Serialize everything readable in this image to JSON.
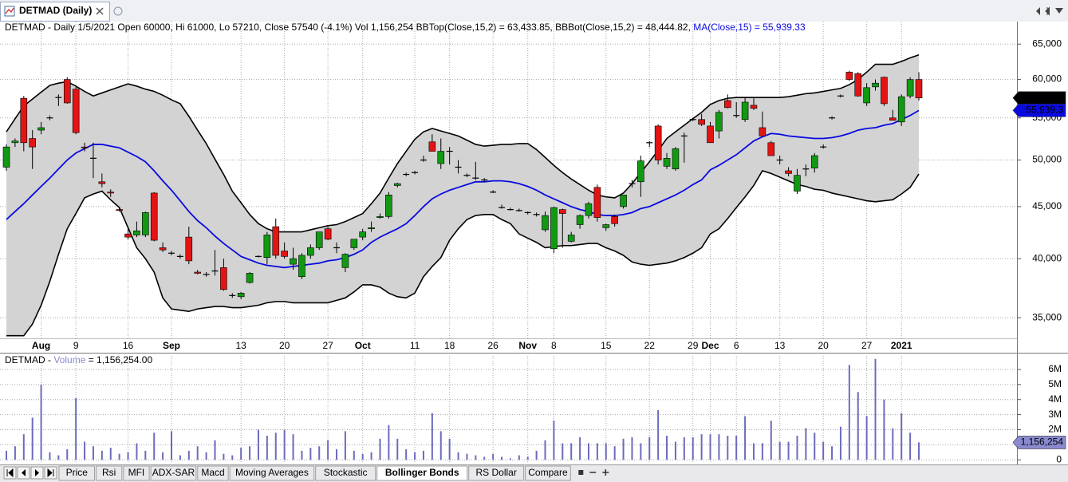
{
  "window": {
    "tab_title": "DETMAD (Daily)"
  },
  "tabs": [
    "Price",
    "Rsi",
    "MFI",
    "ADX-SAR",
    "Macd",
    "Moving Averages",
    "Stockastic",
    "Bollinger Bonds",
    "RS Dollar",
    "Compare"
  ],
  "active_tab": 7,
  "chart_data": [
    {
      "type": "candlestick",
      "info": "DETMAD - Daily 1/5/2021 Open 60000, Hi 61000, Lo 57210, Close 57540 (-4.1%) Vol 1,156,254 BBTop(Close,15,2) = 63,433.85, BBBot(Close,15,2) = 48,444.82, ",
      "info_ma": "MA(Close,15) = 55,939.33",
      "log": true,
      "grid": true,
      "up_color": "#119a11",
      "down_color": "#e31414",
      "band_fill": "#d3d3d3",
      "band_color": "#000000",
      "ma_color": "#0a0ae0",
      "ylim": [
        33400,
        68400
      ],
      "yticks": [
        {
          "value": 35000,
          "label": "35,000"
        },
        {
          "value": 40000,
          "label": "40,000"
        },
        {
          "value": 45000,
          "label": "45,000"
        },
        {
          "value": 50000,
          "label": "50,000"
        },
        {
          "value": 55000,
          "label": "55,000"
        },
        {
          "value": 60000,
          "label": "60,000"
        },
        {
          "value": 65000,
          "label": "65,000"
        }
      ],
      "last_labels": {
        "close": "57,540",
        "ma": "55,939.3"
      },
      "categories": [
        null,
        null,
        null,
        null,
        "Aug",
        null,
        null,
        null,
        "9",
        null,
        null,
        null,
        null,
        null,
        "16",
        null,
        null,
        null,
        null,
        "Sep",
        null,
        null,
        null,
        null,
        null,
        null,
        null,
        "13",
        null,
        null,
        null,
        null,
        "20",
        null,
        null,
        null,
        null,
        "27",
        null,
        null,
        null,
        "Oct",
        null,
        null,
        null,
        null,
        null,
        "11",
        null,
        null,
        null,
        "18",
        null,
        null,
        null,
        null,
        "26",
        null,
        null,
        null,
        "Nov",
        null,
        null,
        "8",
        null,
        null,
        null,
        null,
        null,
        "15",
        null,
        null,
        null,
        null,
        "22",
        null,
        null,
        null,
        null,
        "29",
        null,
        "Dec",
        null,
        null,
        "6",
        null,
        null,
        null,
        null,
        "13",
        null,
        null,
        null,
        null,
        "20",
        null,
        null,
        null,
        null,
        "27",
        null,
        null,
        null,
        "2021",
        null,
        null
      ],
      "open": [
        49200,
        52000,
        57500,
        52500,
        53500,
        55000,
        57600,
        60000,
        58700,
        51500,
        50200,
        47600,
        46500,
        44700,
        42300,
        42200,
        42200,
        46400,
        41000,
        40500,
        40200,
        42000,
        38800,
        38600,
        38900,
        39200,
        36800,
        36700,
        37900,
        40200,
        40100,
        43000,
        40700,
        39500,
        38400,
        40300,
        41000,
        42800,
        41000,
        39200,
        41000,
        42000,
        42800,
        43900,
        44000,
        47200,
        48400,
        48600,
        50000,
        52100,
        49600,
        51000,
        49200,
        48300,
        48000,
        47800,
        46500,
        44900,
        44700,
        44600,
        44400,
        44200,
        42700,
        40900,
        44700,
        41600,
        43200,
        44100,
        47000,
        42900,
        44000,
        45000,
        47400,
        47600,
        52000,
        54000,
        49300,
        49000,
        52800,
        54800,
        54800,
        54000,
        53400,
        57200,
        55300,
        54800,
        56600,
        53800,
        52000,
        50000,
        48800,
        46600,
        49000,
        49100,
        51500,
        55000,
        57800,
        61000,
        60800,
        56900,
        59000,
        60300,
        55000,
        54500,
        57800,
        60000
      ],
      "high": [
        51800,
        52500,
        57800,
        53500,
        54500,
        55300,
        58000,
        60300,
        59000,
        52000,
        52000,
        48500,
        46800,
        45000,
        43000,
        43500,
        44500,
        46500,
        41500,
        40700,
        40400,
        43000,
        39000,
        38800,
        40800,
        40000,
        37000,
        37100,
        38800,
        40300,
        42500,
        43800,
        41500,
        41000,
        40500,
        41300,
        42500,
        43000,
        41500,
        40500,
        41800,
        42800,
        43500,
        44300,
        46500,
        47500,
        48600,
        48800,
        50500,
        53000,
        52500,
        51500,
        50000,
        48500,
        49800,
        48000,
        46700,
        45200,
        44900,
        44800,
        44500,
        44400,
        44500,
        45000,
        44800,
        42500,
        44200,
        45500,
        47300,
        43300,
        44200,
        46200,
        47800,
        50500,
        52200,
        54200,
        50800,
        51500,
        53200,
        55000,
        55500,
        54500,
        56000,
        58000,
        57000,
        57600,
        57500,
        55800,
        52200,
        50500,
        49200,
        49000,
        49500,
        50800,
        51800,
        55200,
        58000,
        61200,
        61000,
        59500,
        60000,
        60400,
        56000,
        58000,
        60300,
        61000
      ],
      "low": [
        48800,
        51500,
        51000,
        49000,
        53000,
        54700,
        56500,
        56800,
        53000,
        51000,
        48000,
        47000,
        46000,
        44500,
        41800,
        42000,
        42000,
        41600,
        40600,
        40300,
        40000,
        39500,
        38600,
        38400,
        38500,
        37200,
        36600,
        36500,
        37800,
        40100,
        39500,
        40000,
        40000,
        39000,
        38200,
        40000,
        40800,
        41700,
        40500,
        38800,
        40800,
        41700,
        42500,
        43800,
        43800,
        47000,
        48200,
        48400,
        49800,
        51000,
        49000,
        49500,
        48500,
        48100,
        47800,
        47600,
        46400,
        44800,
        44600,
        44500,
        44200,
        44000,
        42500,
        40500,
        41000,
        41500,
        42800,
        43800,
        43500,
        42600,
        43000,
        44800,
        47000,
        46000,
        51500,
        49500,
        49000,
        48800,
        49700,
        54600,
        54000,
        52000,
        52500,
        56200,
        55000,
        54500,
        56000,
        52800,
        50500,
        49500,
        48200,
        46300,
        48200,
        48600,
        51300,
        54800,
        57600,
        59800,
        57700,
        56500,
        58500,
        56500,
        54700,
        54000,
        57500,
        57210
      ],
      "close": [
        51500,
        52200,
        52000,
        51500,
        53800,
        55000,
        57600,
        56900,
        53200,
        51400,
        50200,
        47400,
        46400,
        44600,
        42000,
        42600,
        44400,
        41700,
        40800,
        40500,
        40200,
        39800,
        38700,
        38600,
        38900,
        37300,
        36800,
        37000,
        38700,
        40200,
        42200,
        40300,
        40200,
        40000,
        40300,
        41000,
        42500,
        41800,
        41000,
        40400,
        41800,
        42500,
        42900,
        44000,
        46200,
        47400,
        48400,
        48600,
        50000,
        51000,
        51000,
        51000,
        49200,
        48300,
        48000,
        47800,
        46500,
        44900,
        44700,
        44600,
        44400,
        44200,
        44100,
        44900,
        44300,
        42200,
        44100,
        45300,
        43900,
        43200,
        43300,
        46200,
        47400,
        49900,
        52000,
        50000,
        50200,
        51300,
        52800,
        54800,
        54200,
        52000,
        55700,
        56300,
        55300,
        57000,
        56200,
        52800,
        50500,
        50000,
        48500,
        48300,
        49000,
        50500,
        51500,
        55000,
        57800,
        60000,
        57800,
        58900,
        59500,
        56800,
        54700,
        57700,
        60000,
        57540
      ],
      "bands": {
        "upper": [
          53300,
          54900,
          56500,
          57400,
          58300,
          59200,
          59500,
          59700,
          59100,
          58400,
          57800,
          58200,
          58600,
          59000,
          59400,
          59100,
          58700,
          58400,
          57900,
          57300,
          56800,
          55200,
          53500,
          51900,
          50100,
          48400,
          46600,
          45400,
          44200,
          43300,
          42800,
          42500,
          42500,
          42500,
          42500,
          42700,
          42900,
          43100,
          43200,
          43500,
          43900,
          44300,
          45300,
          46400,
          48000,
          49600,
          51000,
          52400,
          53300,
          53700,
          53400,
          53100,
          52800,
          52300,
          51800,
          51600,
          51700,
          51800,
          51800,
          51900,
          51900,
          51200,
          50300,
          49400,
          48600,
          47900,
          47300,
          46700,
          46200,
          46000,
          45900,
          46400,
          47400,
          48600,
          49800,
          51100,
          52500,
          53300,
          54100,
          54900,
          55700,
          56700,
          57200,
          57500,
          57600,
          57600,
          57600,
          57600,
          57600,
          57600,
          57700,
          57900,
          58100,
          58200,
          58400,
          58600,
          58800,
          59300,
          60000,
          61000,
          62100,
          62100,
          62100,
          62500,
          63000,
          63433.85
        ],
        "lower": [
          33600,
          33600,
          33600,
          34500,
          36000,
          38000,
          40400,
          42800,
          44300,
          45900,
          46300,
          46600,
          45700,
          44900,
          42900,
          41000,
          40000,
          38800,
          36600,
          35700,
          35600,
          35500,
          35700,
          35800,
          35900,
          35900,
          35800,
          35800,
          35900,
          36000,
          36200,
          36300,
          36300,
          36200,
          36200,
          36200,
          36200,
          36200,
          36400,
          36600,
          37100,
          37700,
          37700,
          37500,
          37000,
          36700,
          36600,
          37000,
          38400,
          39300,
          40100,
          41700,
          42800,
          43700,
          44100,
          44200,
          44200,
          43700,
          43300,
          42300,
          41900,
          41500,
          41000,
          41100,
          41200,
          41200,
          41300,
          41400,
          41400,
          41000,
          40700,
          40300,
          39700,
          39500,
          39400,
          39500,
          39600,
          39800,
          40100,
          40500,
          41000,
          42300,
          42800,
          43800,
          44900,
          46000,
          47200,
          48800,
          48500,
          48100,
          47700,
          47300,
          47100,
          46800,
          46700,
          46400,
          46200,
          46000,
          45800,
          45600,
          45500,
          45600,
          45700,
          46300,
          47000,
          48444.82
        ],
        "ma": [
          43700,
          44500,
          45300,
          46200,
          47100,
          48000,
          49000,
          50000,
          50800,
          51300,
          51800,
          51800,
          51600,
          51400,
          50900,
          50400,
          49800,
          48800,
          47700,
          46700,
          45600,
          44500,
          43600,
          42900,
          42100,
          41400,
          40800,
          40200,
          39900,
          39600,
          39400,
          39300,
          39200,
          39300,
          39400,
          39500,
          39600,
          39800,
          39900,
          40100,
          40400,
          40800,
          41500,
          42000,
          42400,
          42800,
          43300,
          44100,
          45000,
          45800,
          46300,
          46700,
          47000,
          47300,
          47600,
          47600,
          47700,
          47700,
          47600,
          47400,
          47100,
          46700,
          46200,
          45800,
          45400,
          45000,
          44700,
          44500,
          44200,
          44100,
          44100,
          44200,
          44400,
          44800,
          45000,
          45400,
          45800,
          46200,
          46700,
          47300,
          47800,
          48900,
          49400,
          50000,
          50600,
          51400,
          52200,
          52700,
          53100,
          53000,
          52800,
          52700,
          52600,
          52500,
          52500,
          52600,
          52800,
          53100,
          53500,
          53700,
          53800,
          54100,
          54300,
          54800,
          55300,
          55939.33
        ]
      }
    },
    {
      "type": "bar",
      "info_prefix": "DETMAD - ",
      "info_name": "Volume",
      "info_value": " = 1,156,254.00",
      "color": "#6b6bbd",
      "name_color": "#8a8ad0",
      "grid": true,
      "ylim": [
        -200000,
        6900000
      ],
      "yticks": [
        0,
        {
          "value": 1000000,
          "label": "1M"
        },
        {
          "value": 2000000,
          "label": "2M"
        },
        {
          "value": 3000000,
          "label": "3M"
        },
        {
          "value": 4000000,
          "label": "4M"
        },
        {
          "value": 5000000,
          "label": "5M"
        },
        {
          "value": 6000000,
          "label": "6M"
        }
      ],
      "last_label": "1,156,254",
      "values": [
        600000,
        900000,
        1700000,
        2800000,
        5000000,
        500000,
        300000,
        700000,
        4100000,
        1200000,
        900000,
        600000,
        800000,
        400000,
        500000,
        1100000,
        600000,
        1800000,
        500000,
        1900000,
        300000,
        600000,
        900000,
        500000,
        1300000,
        400000,
        300000,
        800000,
        900000,
        2000000,
        1600000,
        1800000,
        2000000,
        1700000,
        600000,
        800000,
        900000,
        1300000,
        700000,
        1900000,
        600000,
        400000,
        500000,
        1400000,
        2300000,
        1400000,
        700000,
        500000,
        600000,
        3100000,
        1900000,
        1400000,
        500000,
        400000,
        300000,
        200000,
        400000,
        200000,
        100000,
        300000,
        200000,
        600000,
        1300000,
        2600000,
        1100000,
        1100000,
        1500000,
        1100000,
        1100000,
        1100000,
        900000,
        1400000,
        1500000,
        1100000,
        1500000,
        3300000,
        1600000,
        1200000,
        1500000,
        1500000,
        1700000,
        1700000,
        1700000,
        1600000,
        1600000,
        2900000,
        1100000,
        1100000,
        2600000,
        1200000,
        1200000,
        1600000,
        2100000,
        1800000,
        1200000,
        900000,
        2200000,
        6300000,
        4500000,
        2900000,
        6700000,
        4000000,
        2100000,
        3100000,
        1800000,
        1156254
      ]
    }
  ]
}
